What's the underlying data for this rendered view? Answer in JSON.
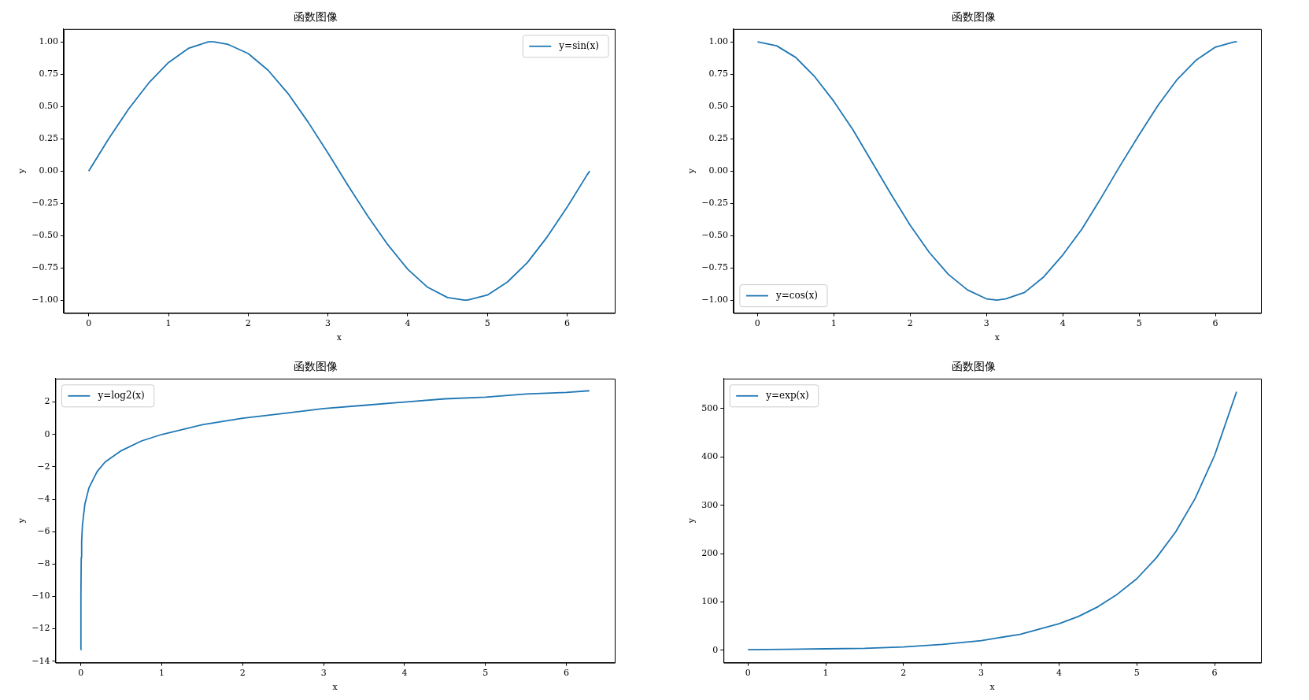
{
  "chart_data": [
    {
      "type": "line",
      "title": "函数图像",
      "xlabel": "x",
      "ylabel": "y",
      "grid": false,
      "marker": "none",
      "legend": "top right",
      "xlim": [
        -0.314,
        6.597
      ],
      "xticks": [
        0,
        1,
        2,
        3,
        4,
        5,
        6
      ],
      "ylim": [
        -1.1,
        1.1
      ],
      "yticks": [
        {
          "value": -1,
          "label": "−1.00"
        },
        {
          "value": -0.75,
          "label": "−0.75"
        },
        {
          "value": -0.5,
          "label": "−0.50"
        },
        {
          "value": -0.25,
          "label": "−0.25"
        },
        {
          "value": 0,
          "label": "0.00"
        },
        {
          "value": 0.25,
          "label": "0.25"
        },
        {
          "value": 0.5,
          "label": "0.50"
        },
        {
          "value": 0.75,
          "label": "0.75"
        },
        {
          "value": 1,
          "label": "1.00"
        }
      ],
      "series": [
        {
          "name": "y=sin(x)",
          "color": "#1f77b4",
          "x": [
            0,
            0.25,
            0.5,
            0.75,
            1,
            1.25,
            1.5,
            1.57,
            1.75,
            2,
            2.25,
            2.5,
            2.75,
            3,
            3.25,
            3.5,
            3.75,
            4,
            4.25,
            4.5,
            4.71,
            4.75,
            5,
            5.25,
            5.5,
            5.75,
            6,
            6.25,
            6.283
          ],
          "values": [
            0,
            0.25,
            0.48,
            0.68,
            0.84,
            0.95,
            1.0,
            1.0,
            0.98,
            0.91,
            0.78,
            0.6,
            0.38,
            0.14,
            -0.11,
            -0.35,
            -0.57,
            -0.76,
            -0.9,
            -0.98,
            -1.0,
            -1.0,
            -0.96,
            -0.86,
            -0.71,
            -0.51,
            -0.28,
            -0.03,
            0
          ]
        }
      ]
    },
    {
      "type": "line",
      "title": "函数图像",
      "xlabel": "x",
      "ylabel": "y",
      "grid": false,
      "marker": "none",
      "legend": "bottom left",
      "xlim": [
        -0.314,
        6.597
      ],
      "xticks": [
        0,
        1,
        2,
        3,
        4,
        5,
        6
      ],
      "ylim": [
        -1.1,
        1.1
      ],
      "yticks": [
        {
          "value": -1,
          "label": "−1.00"
        },
        {
          "value": -0.75,
          "label": "−0.75"
        },
        {
          "value": -0.5,
          "label": "−0.50"
        },
        {
          "value": -0.25,
          "label": "−0.25"
        },
        {
          "value": 0,
          "label": "0.00"
        },
        {
          "value": 0.25,
          "label": "0.25"
        },
        {
          "value": 0.5,
          "label": "0.50"
        },
        {
          "value": 0.75,
          "label": "0.75"
        },
        {
          "value": 1,
          "label": "1.00"
        }
      ],
      "series": [
        {
          "name": "y=cos(x)",
          "color": "#1f77b4",
          "x": [
            0,
            0.25,
            0.5,
            0.75,
            1,
            1.25,
            1.5,
            1.75,
            2,
            2.25,
            2.5,
            2.75,
            3,
            3.14,
            3.25,
            3.5,
            3.75,
            4,
            4.25,
            4.5,
            4.75,
            5,
            5.25,
            5.5,
            5.75,
            6,
            6.25,
            6.283
          ],
          "values": [
            1,
            0.97,
            0.88,
            0.73,
            0.54,
            0.32,
            0.07,
            -0.18,
            -0.42,
            -0.63,
            -0.8,
            -0.92,
            -0.99,
            -1.0,
            -0.99,
            -0.94,
            -0.82,
            -0.65,
            -0.45,
            -0.21,
            0.04,
            0.28,
            0.51,
            0.71,
            0.86,
            0.96,
            1.0,
            1
          ]
        }
      ]
    },
    {
      "type": "line",
      "title": "函数图像",
      "xlabel": "x",
      "ylabel": "y",
      "grid": false,
      "marker": "none",
      "legend": "top left",
      "xlim": [
        -0.314,
        6.597
      ],
      "xticks": [
        0,
        1,
        2,
        3,
        4,
        5,
        6
      ],
      "ylim": [
        -14.09,
        3.45
      ],
      "yticks": [
        {
          "value": -14,
          "label": "−14"
        },
        {
          "value": -12,
          "label": "−12"
        },
        {
          "value": -10,
          "label": "−10"
        },
        {
          "value": -8,
          "label": "−8"
        },
        {
          "value": -6,
          "label": "−6"
        },
        {
          "value": -4,
          "label": "−4"
        },
        {
          "value": -2,
          "label": "−2"
        },
        0,
        2
      ],
      "series": [
        {
          "name": "y=log2(x)",
          "color": "#1f77b4",
          "x": [
            0.0001,
            0.001,
            0.005,
            0.01,
            0.02,
            0.05,
            0.1,
            0.2,
            0.3,
            0.5,
            0.75,
            1,
            1.5,
            2,
            2.5,
            3,
            3.5,
            4,
            4.5,
            5,
            5.5,
            6,
            6.283
          ],
          "values": [
            -13.3,
            -10.0,
            -7.6,
            -6.6,
            -5.6,
            -4.3,
            -3.3,
            -2.3,
            -1.7,
            -1.0,
            -0.4,
            0,
            0.6,
            1.0,
            1.3,
            1.6,
            1.8,
            2.0,
            2.2,
            2.3,
            2.5,
            2.6,
            2.7
          ]
        }
      ]
    },
    {
      "type": "line",
      "title": "函数图像",
      "xlabel": "x",
      "ylabel": "y",
      "grid": false,
      "marker": "none",
      "legend": "top left",
      "xlim": [
        -0.314,
        6.597
      ],
      "xticks": [
        0,
        1,
        2,
        3,
        4,
        5,
        6
      ],
      "ylim": [
        -25.7,
        562.2
      ],
      "yticks": [
        0,
        100,
        200,
        300,
        400,
        500
      ],
      "series": [
        {
          "name": "y=exp(x)",
          "color": "#1f77b4",
          "x": [
            0,
            0.5,
            1,
            1.5,
            2,
            2.5,
            3,
            3.5,
            4,
            4.25,
            4.5,
            4.75,
            5,
            5.25,
            5.5,
            5.75,
            6,
            6.283
          ],
          "values": [
            1,
            2,
            3,
            4,
            7,
            12,
            20,
            33,
            55,
            70,
            90,
            116,
            148,
            191,
            245,
            314,
            403,
            535
          ]
        }
      ]
    }
  ]
}
